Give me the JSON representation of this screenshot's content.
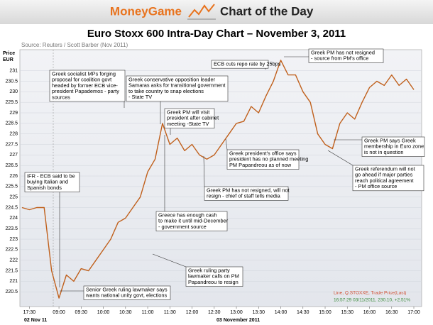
{
  "header": {
    "brand": "MoneyGame",
    "tagline": "Chart of the Day"
  },
  "chart_data": {
    "type": "line",
    "title": "Euro Stoxx 600 Intra-Day Chart – November 3, 2011",
    "source": "Source: Reuters / Scott Barber (Nov 2011)",
    "y_label": [
      "Price",
      "EUR"
    ],
    "date_labels": [
      "02 Nov 11",
      "03 November 2011"
    ],
    "categories": [
      null,
      "17:30",
      null,
      null,
      null,
      "09:00",
      null,
      null,
      "09:30",
      null,
      null,
      "10:00",
      null,
      null,
      "10:30",
      null,
      null,
      "11:00",
      null,
      null,
      "11:30",
      null,
      null,
      "12:00",
      null,
      null,
      "12:30",
      null,
      null,
      "13:00",
      null,
      null,
      "13:30",
      null,
      null,
      "14:00",
      null,
      null,
      "14:30",
      null,
      null,
      "15:00",
      null,
      null,
      "15:30",
      null,
      null,
      "16:00",
      null,
      null,
      "16:30",
      null,
      null,
      "17:00"
    ],
    "series": [
      {
        "name": "Q.STOXXE",
        "color": "#c0601c",
        "values": [
          224.5,
          224.4,
          224.5,
          224.5,
          221.5,
          220.2,
          221.3,
          221.0,
          221.6,
          221.5,
          222.0,
          222.5,
          223.0,
          223.8,
          224.0,
          224.5,
          225.0,
          226.2,
          226.8,
          228.5,
          227.5,
          227.8,
          227.2,
          227.5,
          227.0,
          226.8,
          227.0,
          227.5,
          228.0,
          228.5,
          228.6,
          229.3,
          229.0,
          229.8,
          230.5,
          231.5,
          230.8,
          230.8,
          230.0,
          229.5,
          228.0,
          227.5,
          227.3,
          228.5,
          229.0,
          228.7,
          229.5,
          230.2,
          230.5,
          230.3,
          230.8,
          230.3,
          230.6,
          230.1
        ]
      }
    ],
    "ylim": [
      219.8,
      232
    ],
    "yticks": [
      220.5,
      221,
      221.5,
      222,
      222.5,
      223,
      223.5,
      224,
      224.5,
      225,
      225.5,
      226,
      226.5,
      227,
      227.5,
      228,
      228.5,
      229,
      229.5,
      230,
      230.5,
      231
    ],
    "grid": true,
    "legend_lines": [
      "Line, Q.STOXXE, Trade Price(Last)",
      "16:57:29 03/11/2011, 230.10, +2.51%"
    ],
    "annotations": [
      [
        "Greek socialist MPs forging",
        "proposal for coalition govt",
        "headed by former ECB vice-",
        "president Papademos - party",
        "sources"
      ],
      [
        "Greek conservative opposition leader",
        "Samaras asks for transitional government",
        "to take country to snap elections",
        "- State TV"
      ],
      [
        "ECB cuts repo rate by 25bps"
      ],
      [
        "Greek PM has not resigned",
        "- source from PM's office"
      ],
      [
        "Greek PM will visit",
        "president after cabinet",
        "meeting  -State TV"
      ],
      [
        "Greek president's office says",
        "president has no planned meeting",
        "PM Papandreou as of now"
      ],
      [
        "Greek PM says Greek",
        "membership in Euro zone",
        "is not in question"
      ],
      [
        "Greek referendum will not",
        "go ahead if major parties",
        "reach political agreement",
        "- PM office source"
      ],
      [
        "IFR - ECB said to be",
        "buying Italian and",
        "Spanish bonds"
      ],
      [
        "Greek PM has not resigned, will not",
        "resign - chief of staff tells media"
      ],
      [
        "Greece has enough cash",
        "to make it until mid-December",
        "- government source"
      ],
      [
        "Greek ruling party",
        "lawmaker calls on PM",
        "Papandreou to resign"
      ],
      [
        "Senior Greek ruling lawmaker says",
        "wants national unity govt, elections"
      ]
    ]
  }
}
